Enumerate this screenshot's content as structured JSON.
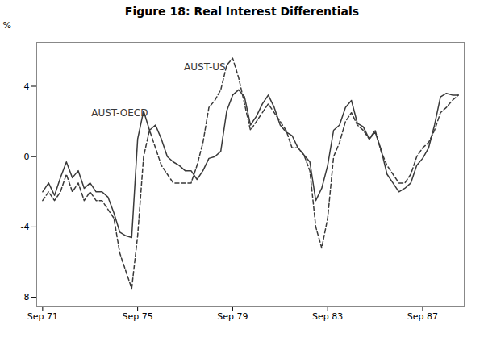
{
  "chart_data": {
    "type": "line",
    "title": "Figure 18: Real Interest Differentials",
    "y_label": "%",
    "xlim": [
      1971.5,
      1989.5
    ],
    "xticks": [
      {
        "value": 1971.75,
        "label": "Sep 71"
      },
      {
        "value": 1975.75,
        "label": "Sep 75"
      },
      {
        "value": 1979.75,
        "label": "Sep 79"
      },
      {
        "value": 1983.75,
        "label": "Sep 83"
      },
      {
        "value": 1987.75,
        "label": "Sep 87"
      }
    ],
    "ylim": [
      -8.5,
      6.5
    ],
    "yticks": [
      -8,
      -4,
      0,
      4
    ],
    "grid": false,
    "x": [
      1971.75,
      1972.0,
      1972.25,
      1972.5,
      1972.75,
      1973.0,
      1973.25,
      1973.5,
      1973.75,
      1974.0,
      1974.25,
      1974.5,
      1974.75,
      1975.0,
      1975.25,
      1975.5,
      1975.75,
      1976.0,
      1976.25,
      1976.5,
      1976.75,
      1977.0,
      1977.25,
      1977.5,
      1977.75,
      1978.0,
      1978.25,
      1978.5,
      1978.75,
      1979.0,
      1979.25,
      1979.5,
      1979.75,
      1980.0,
      1980.25,
      1980.5,
      1980.75,
      1981.0,
      1981.25,
      1981.5,
      1981.75,
      1982.0,
      1982.25,
      1982.5,
      1982.75,
      1983.0,
      1983.25,
      1983.5,
      1983.75,
      1984.0,
      1984.25,
      1984.5,
      1984.75,
      1985.0,
      1985.25,
      1985.5,
      1985.75,
      1986.0,
      1986.25,
      1986.5,
      1986.75,
      1987.0,
      1987.25,
      1987.5,
      1987.75,
      1988.0,
      1988.25,
      1988.5,
      1988.75,
      1989.0,
      1989.25
    ],
    "series": [
      {
        "name": "AUST-OECD",
        "color": "#3a3a3a",
        "line_style": "solid",
        "values": [
          -2.0,
          -1.5,
          -2.2,
          -1.2,
          -0.3,
          -1.2,
          -0.8,
          -1.8,
          -1.5,
          -2.0,
          -2.0,
          -2.3,
          -3.2,
          -4.3,
          -4.5,
          -4.6,
          1.0,
          2.6,
          1.5,
          1.8,
          1.0,
          0.0,
          -0.3,
          -0.5,
          -0.8,
          -0.8,
          -1.3,
          -0.8,
          -0.1,
          0.0,
          0.3,
          2.6,
          3.5,
          3.8,
          3.4,
          1.8,
          2.3,
          3.0,
          3.5,
          2.8,
          1.8,
          1.4,
          1.2,
          0.5,
          0.1,
          -0.3,
          -2.5,
          -1.8,
          -0.5,
          1.5,
          1.8,
          2.8,
          3.2,
          1.9,
          1.7,
          1.0,
          1.4,
          0.4,
          -1.0,
          -1.5,
          -2.0,
          -1.8,
          -1.5,
          -0.5,
          -0.1,
          0.5,
          1.8,
          3.4,
          3.6,
          3.5,
          3.5
        ]
      },
      {
        "name": "AUST-US",
        "color": "#3a3a3a",
        "line_style": "dashed",
        "values": [
          -2.5,
          -2.0,
          -2.5,
          -2.0,
          -1.0,
          -2.0,
          -1.5,
          -2.5,
          -2.0,
          -2.5,
          -2.5,
          -3.0,
          -3.5,
          -5.5,
          -6.5,
          -7.5,
          -4.5,
          0.0,
          1.5,
          0.5,
          -0.5,
          -1.0,
          -1.5,
          -1.5,
          -1.5,
          -1.5,
          -0.5,
          0.8,
          2.8,
          3.2,
          3.8,
          5.2,
          5.6,
          4.5,
          3.0,
          1.5,
          2.0,
          2.5,
          3.0,
          2.5,
          2.0,
          1.5,
          0.5,
          0.5,
          0.1,
          -0.8,
          -4.0,
          -5.2,
          -3.5,
          0.0,
          0.8,
          2.0,
          2.5,
          1.8,
          1.5,
          1.0,
          1.5,
          0.3,
          -0.5,
          -1.0,
          -1.5,
          -1.5,
          -1.0,
          0.0,
          0.5,
          0.8,
          1.5,
          2.5,
          2.8,
          3.2,
          3.5
        ]
      }
    ],
    "annotations": [
      {
        "text": "AUST-OECD",
        "x": 1973.8,
        "y": 2.3,
        "color": "#3a3a3a"
      },
      {
        "text": "AUST-US",
        "x": 1977.7,
        "y": 4.9,
        "color": "#3a3a3a"
      }
    ]
  }
}
